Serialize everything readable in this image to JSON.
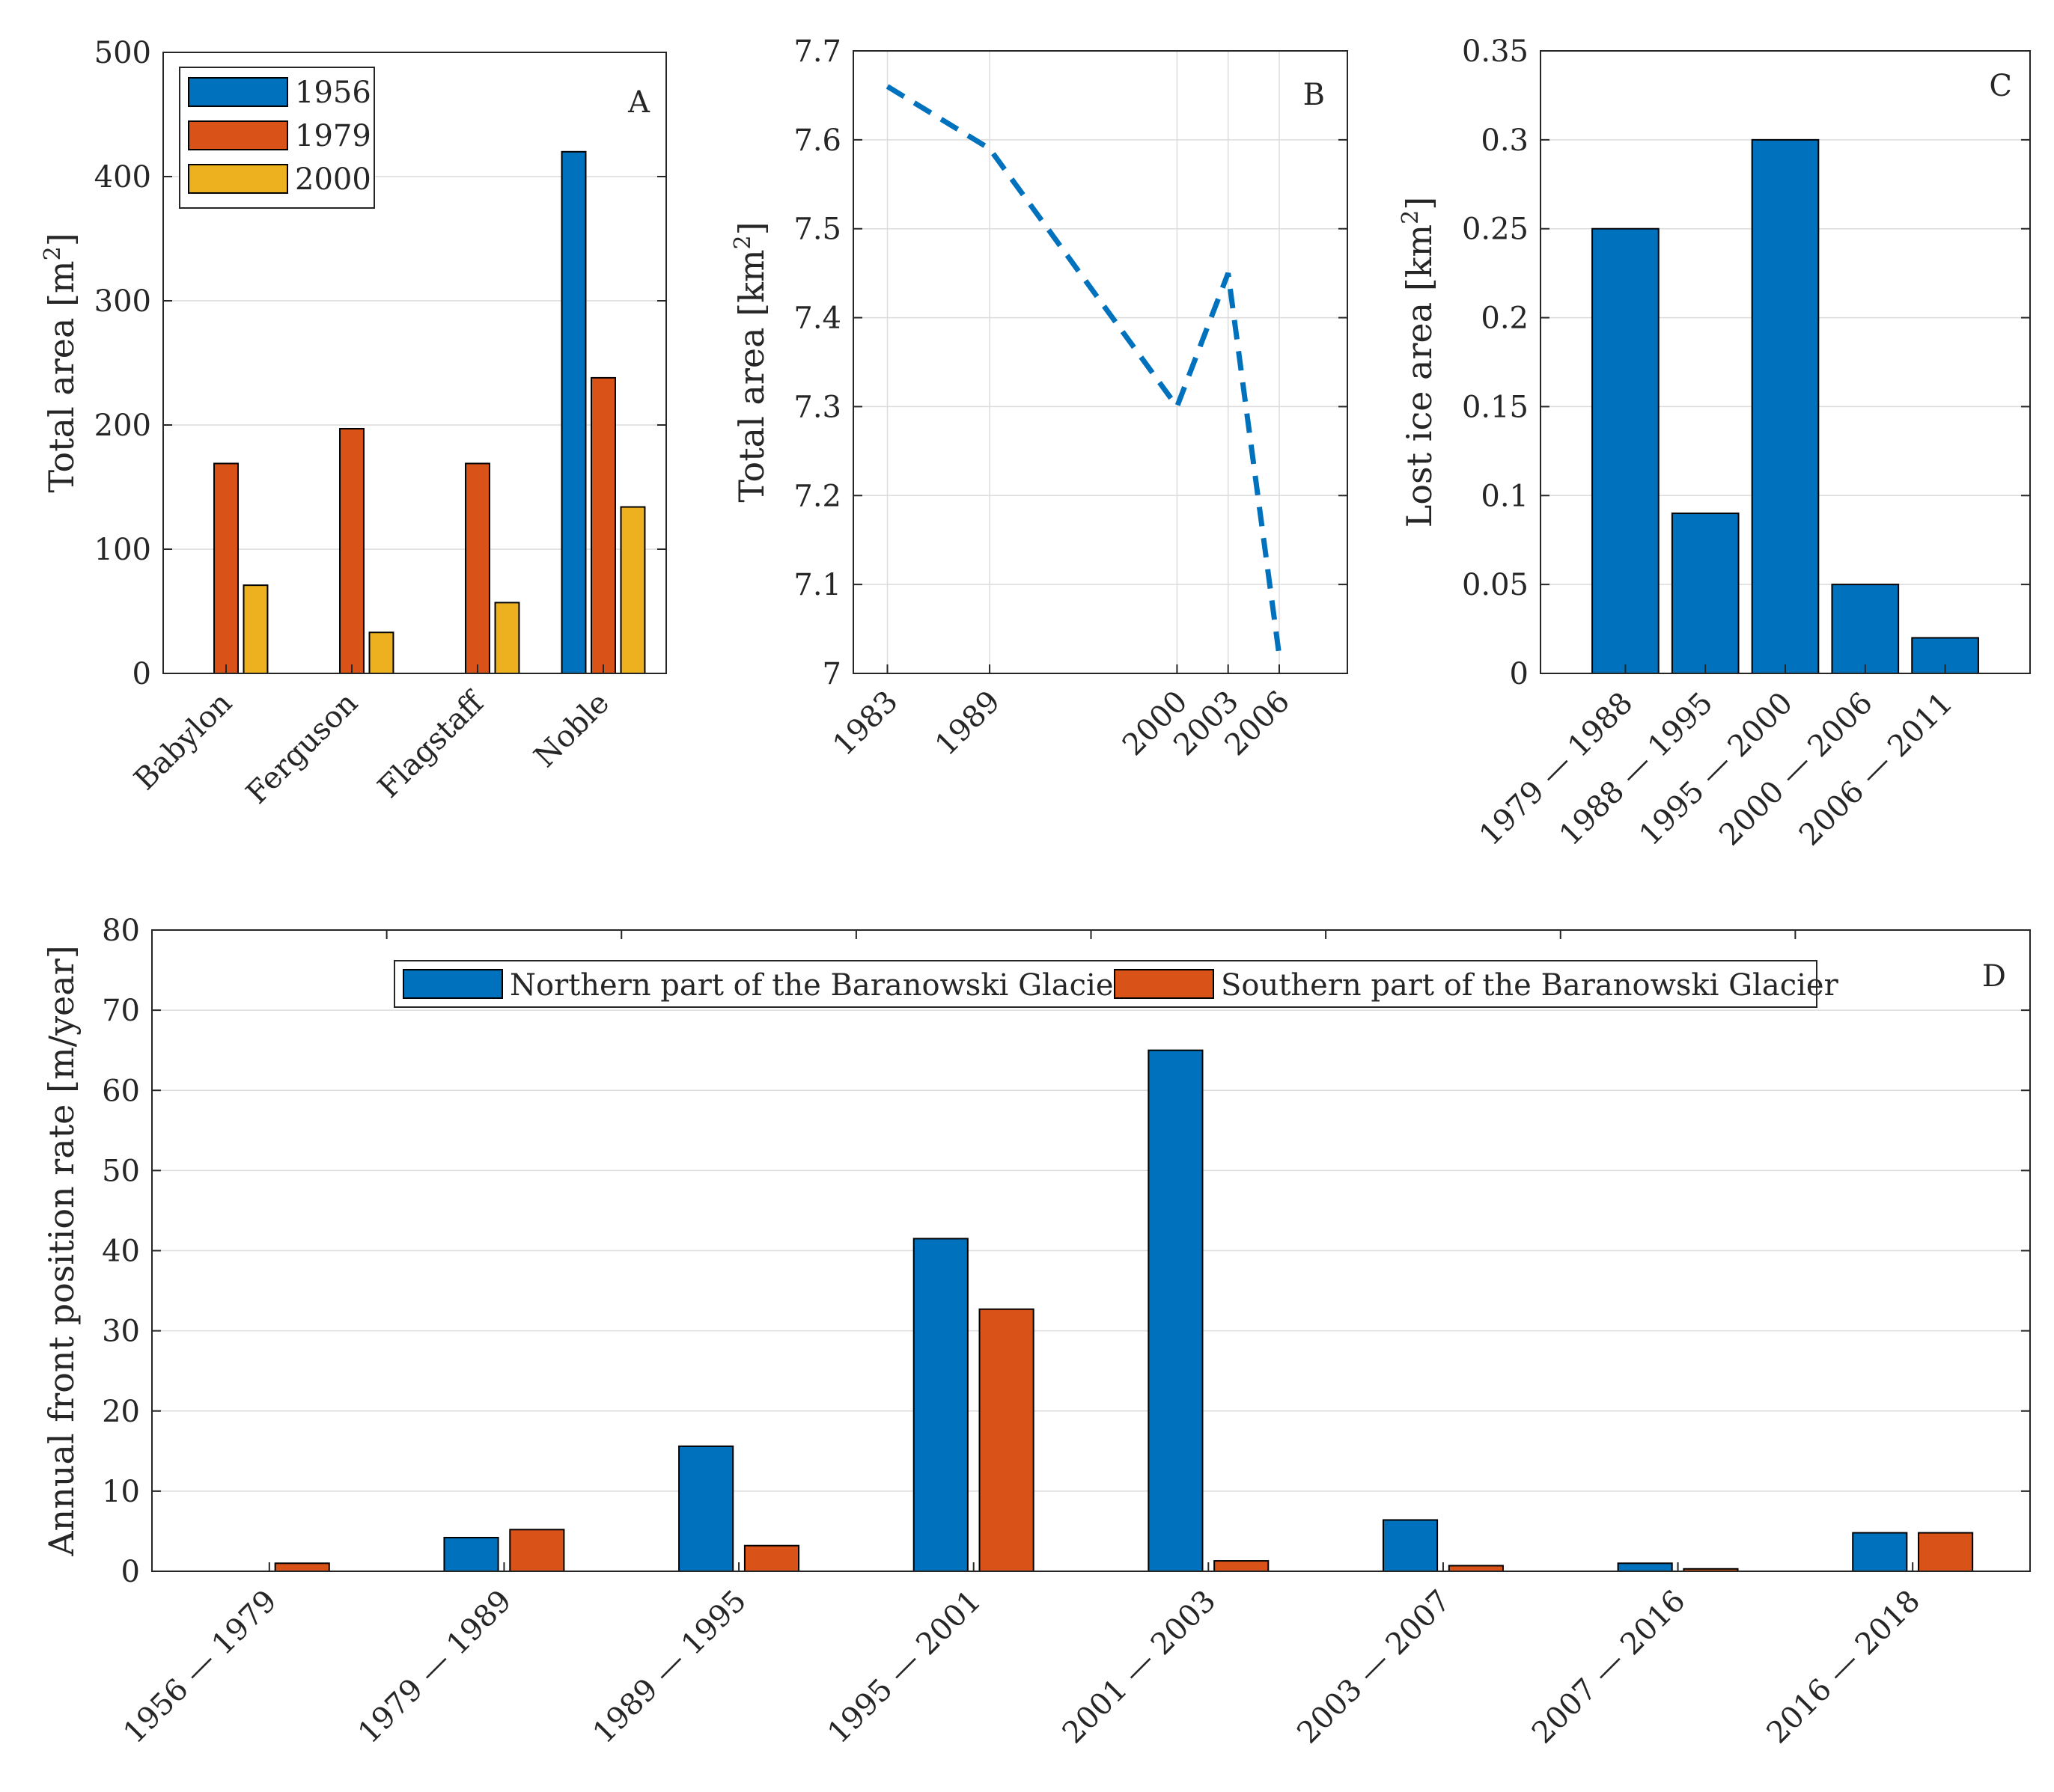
{
  "chart_data": [
    {
      "id": "A",
      "type": "bar",
      "panel_label": "A",
      "title": "",
      "xlabel": "",
      "ylabel": "Total area [m",
      "ylabel_sup": "2",
      "ylabel_close": "]",
      "categories": [
        "Babylon",
        "Ferguson",
        "Flagstaff",
        "Noble"
      ],
      "series": [
        {
          "name": "1956",
          "color": "#0072BD",
          "values": [
            0,
            0,
            0,
            420
          ]
        },
        {
          "name": "1979",
          "color": "#D95319",
          "values": [
            169,
            197,
            169,
            238
          ]
        },
        {
          "name": "2000",
          "color": "#EDB120",
          "values": [
            71,
            33,
            57,
            134
          ]
        }
      ],
      "ylim": [
        0,
        500
      ],
      "yticks": [
        0,
        100,
        200,
        300,
        400,
        500
      ],
      "ytick_labels": [
        "0",
        "100",
        "200",
        "300",
        "400",
        "500"
      ],
      "grid": true,
      "legend": "top-left"
    },
    {
      "id": "B",
      "type": "line",
      "panel_label": "B",
      "title": "",
      "xlabel": "",
      "ylabel": "Total area [km",
      "ylabel_sup": "2",
      "ylabel_close": "]",
      "x": [
        1983,
        1989,
        2000,
        2003,
        2006
      ],
      "xtick_labels": [
        "1983",
        "1989",
        "2000",
        "2003",
        "2006"
      ],
      "xlim": [
        1981,
        2010
      ],
      "series": [
        {
          "name": "Total area",
          "color": "#0072BD",
          "style": "dashed",
          "values": [
            7.66,
            7.59,
            7.3,
            7.45,
            7.02
          ]
        }
      ],
      "ylim": [
        7,
        7.7
      ],
      "yticks": [
        7,
        7.1,
        7.2,
        7.3,
        7.4,
        7.5,
        7.6,
        7.7
      ],
      "ytick_labels": [
        "7",
        "7.1",
        "7.2",
        "7.3",
        "7.4",
        "7.5",
        "7.6",
        "7.7"
      ],
      "grid": true
    },
    {
      "id": "C",
      "type": "bar",
      "panel_label": "C",
      "title": "",
      "xlabel": "",
      "ylabel": "Lost ice area [km",
      "ylabel_sup": "2",
      "ylabel_close": "]",
      "categories": [
        "1979 — 1988",
        "1988 — 1995",
        "1995 — 2000",
        "2000 — 2006",
        "2006 — 2011"
      ],
      "series": [
        {
          "name": "Lost ice area",
          "color": "#0072BD",
          "values": [
            0.25,
            0.09,
            0.3,
            0.05,
            0.02
          ]
        }
      ],
      "ylim": [
        0,
        0.35
      ],
      "yticks": [
        0,
        0.05,
        0.1,
        0.15,
        0.2,
        0.25,
        0.3,
        0.35
      ],
      "ytick_labels": [
        "0",
        "0.05",
        "0.1",
        "0.15",
        "0.2",
        "0.25",
        "0.3",
        "0.35"
      ],
      "grid": true
    },
    {
      "id": "D",
      "type": "bar",
      "panel_label": "D",
      "title": "",
      "xlabel": "",
      "ylabel": "Annual front position rate [m/year]",
      "categories": [
        "1956 — 1979",
        "1979 — 1989",
        "1989 — 1995",
        "1995 — 2001",
        "2001 — 2003",
        "2003 — 2007",
        "2007 — 2016",
        "2016 — 2018"
      ],
      "series": [
        {
          "name": "Northern part of the Baranowski Glacier",
          "color": "#0072BD",
          "values": [
            0,
            4.2,
            15.6,
            41.5,
            65,
            6.4,
            1.0,
            4.8
          ]
        },
        {
          "name": "Southern part of the Baranowski Glacier",
          "color": "#D95319",
          "values": [
            1.0,
            5.2,
            3.2,
            32.7,
            1.3,
            0.7,
            0.3,
            4.8
          ]
        }
      ],
      "ylim": [
        0,
        80
      ],
      "yticks": [
        0,
        10,
        20,
        30,
        40,
        50,
        60,
        70,
        80
      ],
      "ytick_labels": [
        "0",
        "10",
        "20",
        "30",
        "40",
        "50",
        "60",
        "70",
        "80"
      ],
      "grid": true,
      "legend": "top-center"
    }
  ]
}
